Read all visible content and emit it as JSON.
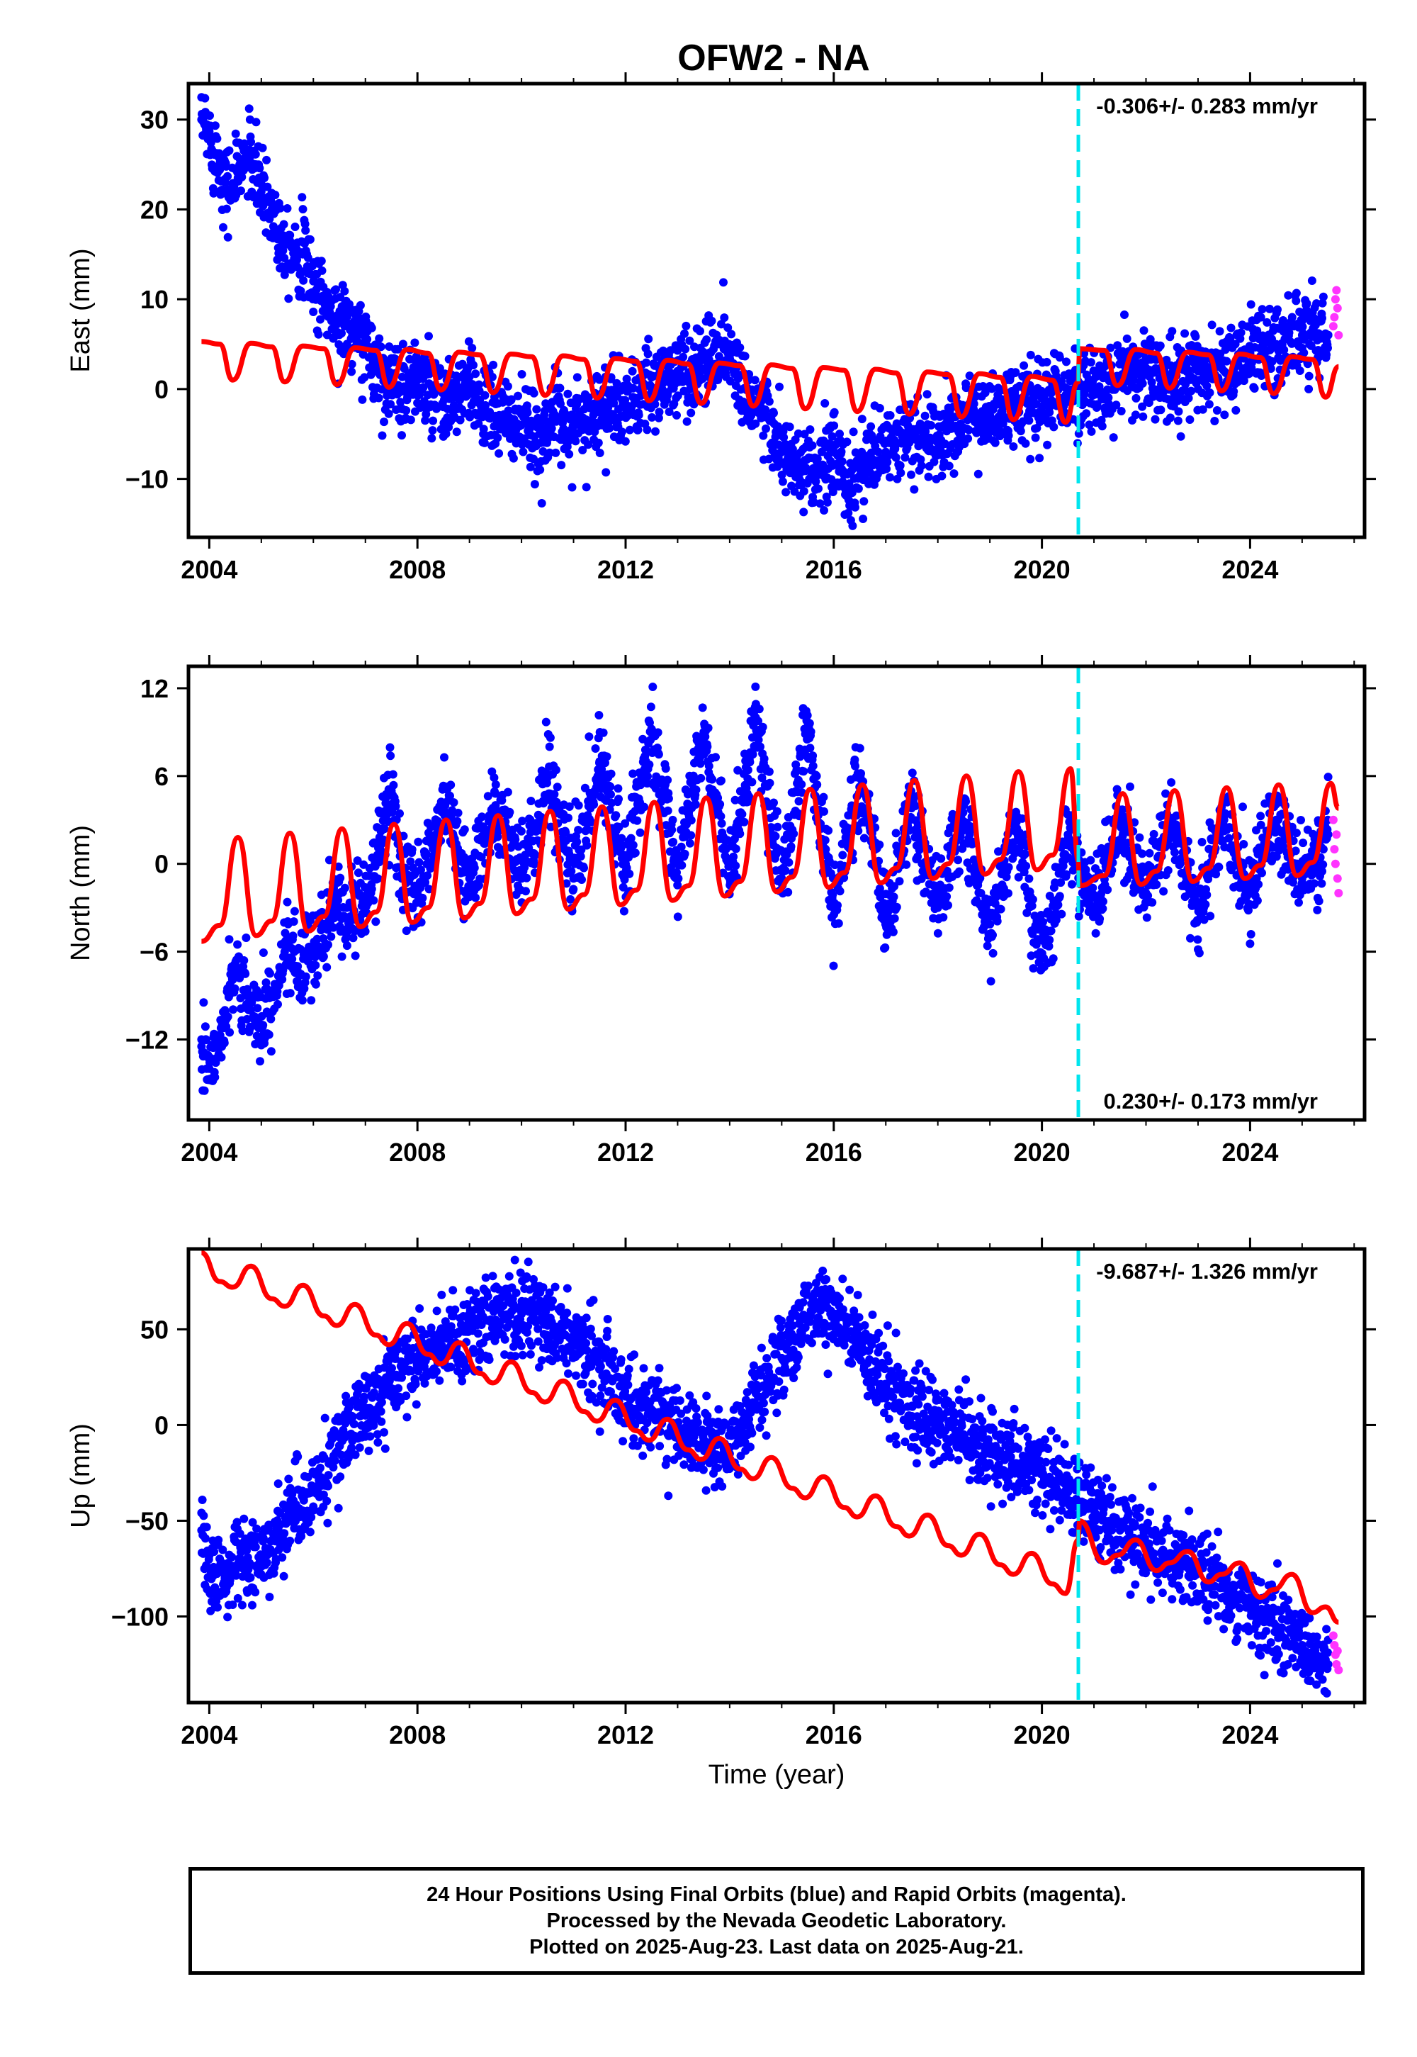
{
  "title": "OFW2 - NA",
  "colors": {
    "final": "#0000ff",
    "rapid": "#ff33ff",
    "model": "#ff0000",
    "equipment_change": "#00e5ee"
  },
  "footer": {
    "line1": "24 Hour Positions Using Final Orbits (blue) and Rapid Orbits (magenta).",
    "line2": "Processed by the Nevada Geodetic Laboratory.",
    "line3": "Plotted on 2025-Aug-23. Last data on 2025-Aug-21."
  },
  "chart_data": [
    {
      "type": "scatter",
      "component": "east",
      "ylabel": "East (mm)",
      "xlabel": "",
      "xlim": [
        2003.6,
        2026.2
      ],
      "ylim": [
        -16.5,
        34
      ],
      "xticks": [
        2004,
        2008,
        2012,
        2016,
        2020,
        2024
      ],
      "yticks": [
        -10,
        0,
        10,
        20,
        30
      ],
      "rate_label": "-0.306+/- 0.283 mm/yr",
      "rate_position": "top-right",
      "equipment_change_x": 2020.7,
      "series": [
        {
          "kind": "final",
          "x": [
            2003.85,
            2004.0,
            2004.2,
            2004.4,
            2004.6,
            2004.8,
            2005.0,
            2005.2,
            2005.4,
            2005.6,
            2005.8,
            2006.0,
            2006.2,
            2006.4,
            2006.6,
            2006.8,
            2007.0,
            2007.3,
            2007.6,
            2008.0,
            2008.5,
            2009.0,
            2009.5,
            2010.0,
            2010.3,
            2010.6,
            2011.0,
            2011.5,
            2012.0,
            2012.5,
            2013.0,
            2013.4,
            2013.8,
            2014.0,
            2014.3,
            2014.6,
            2015.0,
            2015.3,
            2015.6,
            2016.0,
            2016.3,
            2016.6,
            2017.0,
            2017.5,
            2018.0,
            2018.5,
            2019.0,
            2019.5,
            2020.0,
            2020.5,
            2020.7,
            2021.0,
            2021.5,
            2022.0,
            2022.5,
            2023.0,
            2023.5,
            2024.0,
            2024.5,
            2025.0,
            2025.5
          ],
          "y": [
            30,
            28,
            25,
            22,
            25,
            26,
            22,
            20,
            17,
            16,
            15,
            12,
            10,
            8,
            7,
            6,
            5,
            2,
            0,
            1,
            -2,
            0,
            -3,
            -4,
            -6,
            -3,
            -4,
            -2,
            -2,
            0,
            2,
            2,
            5,
            4,
            0,
            -2,
            -7,
            -9,
            -10,
            -7,
            -11,
            -8,
            -7,
            -5,
            -6,
            -3,
            -3,
            -2,
            -1,
            0,
            0,
            0,
            1,
            2,
            1,
            2,
            2,
            4,
            5,
            6,
            6
          ]
        },
        {
          "kind": "rapid",
          "x": [
            2025.6,
            2025.62,
            2025.64,
            2025.66,
            2025.68,
            2025.7
          ],
          "y": [
            7,
            8,
            10,
            11,
            9,
            6
          ]
        },
        {
          "kind": "model",
          "x": [
            2003.85,
            2004.2,
            2004.45,
            2004.8,
            2005.2,
            2005.45,
            2005.8,
            2006.2,
            2006.45,
            2006.8,
            2007.2,
            2007.45,
            2007.8,
            2008.2,
            2008.45,
            2008.8,
            2009.2,
            2009.45,
            2009.8,
            2010.2,
            2010.45,
            2010.8,
            2011.2,
            2011.45,
            2011.8,
            2012.2,
            2012.45,
            2012.8,
            2013.2,
            2013.45,
            2013.8,
            2014.2,
            2014.45,
            2014.8,
            2015.2,
            2015.45,
            2015.8,
            2016.2,
            2016.45,
            2016.8,
            2017.2,
            2017.45,
            2017.8,
            2018.2,
            2018.45,
            2018.8,
            2019.2,
            2019.45,
            2019.8,
            2020.2,
            2020.45,
            2020.7,
            2020.72,
            2021.2,
            2021.45,
            2021.8,
            2022.2,
            2022.45,
            2022.8,
            2023.2,
            2023.45,
            2023.8,
            2024.2,
            2024.45,
            2024.8,
            2025.2,
            2025.45,
            2025.7
          ],
          "y": [
            5.3,
            5,
            1,
            5.1,
            4.7,
            0.8,
            4.8,
            4.5,
            0.5,
            4.6,
            4.3,
            0.2,
            4.4,
            4.0,
            -0.1,
            4.1,
            3.8,
            -0.4,
            3.9,
            3.6,
            -0.7,
            3.7,
            3.3,
            -1.0,
            3.4,
            3.1,
            -1.3,
            3.2,
            2.8,
            -1.6,
            2.9,
            2.6,
            -1.9,
            2.7,
            2.3,
            -2.2,
            2.4,
            2.1,
            -2.5,
            2.2,
            1.8,
            -2.8,
            1.9,
            1.6,
            -3.1,
            1.7,
            1.3,
            -3.4,
            1.4,
            1.0,
            -3.7,
            0.8,
            4.5,
            4.3,
            0.4,
            4.4,
            4.0,
            0.1,
            4.1,
            3.8,
            -0.2,
            3.9,
            3.5,
            -0.5,
            3.6,
            3.3,
            -0.9,
            2.5
          ]
        }
      ]
    },
    {
      "type": "scatter",
      "component": "north",
      "ylabel": "North (mm)",
      "xlabel": "",
      "xlim": [
        2003.6,
        2026.2
      ],
      "ylim": [
        -17.5,
        13.5
      ],
      "xticks": [
        2004,
        2008,
        2012,
        2016,
        2020,
        2024
      ],
      "yticks": [
        -12,
        -6,
        0,
        6,
        12
      ],
      "rate_label": "0.230+/- 0.173 mm/yr",
      "rate_position": "bottom-right",
      "equipment_change_x": 2020.7,
      "series": [
        {
          "kind": "final",
          "x": [
            2003.85,
            2004.0,
            2004.3,
            2004.5,
            2004.7,
            2005.0,
            2005.3,
            2005.5,
            2005.7,
            2006.0,
            2006.3,
            2006.5,
            2006.7,
            2007.0,
            2007.5,
            2007.7,
            2008.0,
            2008.5,
            2009.0,
            2009.5,
            2010.0,
            2010.5,
            2011.0,
            2011.5,
            2012.0,
            2012.5,
            2013.0,
            2013.5,
            2014.0,
            2014.5,
            2015.0,
            2015.5,
            2016.0,
            2016.5,
            2017.0,
            2017.5,
            2018.0,
            2018.5,
            2019.0,
            2019.5,
            2020.0,
            2020.5,
            2021.0,
            2021.5,
            2022.0,
            2022.5,
            2023.0,
            2023.5,
            2024.0,
            2024.5,
            2025.0,
            2025.5
          ],
          "y": [
            -12,
            -14,
            -10,
            -7,
            -9,
            -11,
            -9,
            -5,
            -7,
            -6,
            -4,
            -2,
            -4,
            -3,
            5,
            -1,
            -2,
            4,
            -1,
            4,
            -1,
            6,
            -1,
            7,
            0,
            9,
            -1,
            9,
            -1,
            10,
            -1,
            9,
            -3,
            6,
            -4,
            4,
            -3,
            4,
            -5,
            3,
            -7,
            2,
            -3,
            3,
            -2,
            3,
            -3,
            3,
            -2,
            3,
            -1,
            2
          ]
        },
        {
          "kind": "rapid",
          "x": [
            2025.6,
            2025.62,
            2025.64,
            2025.66,
            2025.68,
            2025.7
          ],
          "y": [
            3,
            1,
            0,
            2,
            -1,
            -2
          ]
        },
        {
          "kind": "model",
          "x": [
            2003.85,
            2004.2,
            2004.55,
            2004.9,
            2005.2,
            2005.55,
            2005.9,
            2006.2,
            2006.55,
            2006.9,
            2007.2,
            2007.55,
            2007.9,
            2008.2,
            2008.55,
            2008.9,
            2009.2,
            2009.55,
            2009.9,
            2010.2,
            2010.55,
            2010.9,
            2011.2,
            2011.55,
            2011.9,
            2012.2,
            2012.55,
            2012.9,
            2013.2,
            2013.55,
            2013.9,
            2014.2,
            2014.55,
            2014.9,
            2015.2,
            2015.55,
            2015.9,
            2016.2,
            2016.55,
            2016.9,
            2017.2,
            2017.55,
            2017.9,
            2018.2,
            2018.55,
            2018.9,
            2019.2,
            2019.55,
            2019.9,
            2020.2,
            2020.55,
            2020.7,
            2020.72,
            2021.2,
            2021.55,
            2021.9,
            2022.2,
            2022.55,
            2022.9,
            2023.2,
            2023.55,
            2023.9,
            2024.2,
            2024.55,
            2024.9,
            2025.2,
            2025.55,
            2025.7
          ],
          "y": [
            -5.3,
            -4.2,
            1.8,
            -4.9,
            -3.9,
            2.1,
            -4.6,
            -3.6,
            2.4,
            -4.3,
            -3.3,
            2.7,
            -4.0,
            -3.0,
            3.0,
            -3.7,
            -2.7,
            3.3,
            -3.4,
            -2.4,
            3.6,
            -3.1,
            -2.1,
            3.9,
            -2.8,
            -1.8,
            4.2,
            -2.5,
            -1.5,
            4.5,
            -2.2,
            -1.2,
            4.8,
            -1.9,
            -0.9,
            5.1,
            -1.6,
            -0.6,
            5.4,
            -1.3,
            -0.3,
            5.7,
            -1.0,
            0.0,
            6.0,
            -0.7,
            0.3,
            6.3,
            -0.4,
            0.6,
            6.5,
            0.2,
            -1.5,
            -0.8,
            4.8,
            -1.4,
            -0.5,
            5.0,
            -1.2,
            -0.3,
            5.2,
            -1.0,
            -0.1,
            5.4,
            -0.8,
            0.1,
            5.5,
            3.8
          ]
        }
      ]
    },
    {
      "type": "scatter",
      "component": "up",
      "ylabel": "Up (mm)",
      "xlabel": "Time (year)",
      "xlim": [
        2003.6,
        2026.2
      ],
      "ylim": [
        -145,
        92
      ],
      "xticks": [
        2004,
        2008,
        2012,
        2016,
        2020,
        2024
      ],
      "yticks": [
        -100,
        -50,
        0,
        50
      ],
      "rate_label": "-9.687+/- 1.326 mm/yr",
      "rate_position": "top-right",
      "equipment_change_x": 2020.7,
      "series": [
        {
          "kind": "final",
          "x": [
            2003.85,
            2004.0,
            2004.3,
            2004.6,
            2005.0,
            2005.3,
            2005.6,
            2006.0,
            2006.3,
            2006.6,
            2007.0,
            2007.3,
            2007.6,
            2008.0,
            2008.3,
            2008.6,
            2009.0,
            2009.5,
            2010.0,
            2010.5,
            2011.0,
            2011.5,
            2012.0,
            2012.5,
            2013.0,
            2013.5,
            2014.0,
            2014.3,
            2014.6,
            2015.0,
            2015.3,
            2015.6,
            2016.0,
            2016.5,
            2017.0,
            2017.5,
            2018.0,
            2018.5,
            2019.0,
            2019.5,
            2020.0,
            2020.5,
            2020.7,
            2021.0,
            2021.5,
            2022.0,
            2022.5,
            2023.0,
            2023.5,
            2024.0,
            2024.5,
            2025.0,
            2025.5
          ],
          "y": [
            -55,
            -75,
            -80,
            -70,
            -70,
            -60,
            -45,
            -35,
            -20,
            -5,
            5,
            15,
            25,
            35,
            40,
            45,
            50,
            55,
            58,
            52,
            42,
            32,
            15,
            8,
            0,
            -8,
            -15,
            0,
            20,
            35,
            45,
            60,
            58,
            45,
            20,
            10,
            0,
            -5,
            -15,
            -20,
            -25,
            -35,
            -40,
            -50,
            -55,
            -65,
            -70,
            -75,
            -85,
            -95,
            -105,
            -115,
            -125
          ]
        },
        {
          "kind": "rapid",
          "x": [
            2025.6,
            2025.62,
            2025.64,
            2025.66,
            2025.68,
            2025.7
          ],
          "y": [
            -110,
            -115,
            -120,
            -125,
            -118,
            -128
          ]
        },
        {
          "kind": "model",
          "x": [
            2003.85,
            2004.2,
            2004.45,
            2004.8,
            2005.2,
            2005.45,
            2005.8,
            2006.2,
            2006.45,
            2006.8,
            2007.2,
            2007.45,
            2007.8,
            2008.2,
            2008.45,
            2008.8,
            2009.2,
            2009.45,
            2009.8,
            2010.2,
            2010.45,
            2010.8,
            2011.2,
            2011.45,
            2011.8,
            2012.2,
            2012.45,
            2012.8,
            2013.2,
            2013.45,
            2013.8,
            2014.2,
            2014.45,
            2014.8,
            2015.2,
            2015.45,
            2015.8,
            2016.2,
            2016.45,
            2016.8,
            2017.2,
            2017.45,
            2017.8,
            2018.2,
            2018.45,
            2018.8,
            2019.2,
            2019.45,
            2019.8,
            2020.2,
            2020.45,
            2020.7,
            2020.72,
            2021.2,
            2021.45,
            2021.8,
            2022.2,
            2022.45,
            2022.8,
            2023.2,
            2023.45,
            2023.8,
            2024.2,
            2024.45,
            2024.8,
            2025.2,
            2025.45,
            2025.7
          ],
          "y": [
            90,
            75,
            72,
            83,
            66,
            62,
            73,
            57,
            52,
            63,
            47,
            42,
            53,
            37,
            32,
            43,
            27,
            22,
            33,
            17,
            12,
            23,
            7,
            2,
            13,
            -3,
            -8,
            3,
            -13,
            -18,
            -7,
            -23,
            -28,
            -17,
            -33,
            -38,
            -27,
            -43,
            -48,
            -37,
            -53,
            -58,
            -47,
            -63,
            -68,
            -57,
            -73,
            -78,
            -67,
            -83,
            -88,
            -60,
            -50,
            -72,
            -68,
            -60,
            -76,
            -72,
            -66,
            -82,
            -78,
            -72,
            -90,
            -86,
            -78,
            -98,
            -95,
            -103
          ]
        }
      ]
    }
  ]
}
